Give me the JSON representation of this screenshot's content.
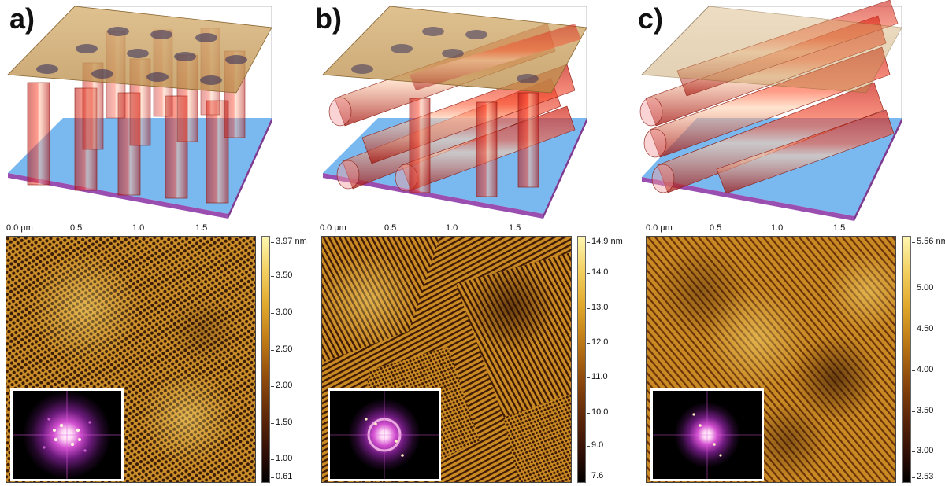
{
  "panels": [
    {
      "label": "a)",
      "axis_ticks": [
        "0.0 µm",
        "0.5",
        "1.0",
        "1.5"
      ],
      "colorbar": {
        "max_label": "3.97 nm",
        "ticks": [
          "3.50",
          "3.00",
          "2.50",
          "2.00",
          "1.50",
          "1.00"
        ],
        "min_label": "0.61"
      },
      "pattern": "hexagonal-dots"
    },
    {
      "label": "b)",
      "axis_ticks": [
        "0.0 µm",
        "0.5",
        "1.0",
        "1.5"
      ],
      "colorbar": {
        "max_label": "14.9 nm",
        "ticks": [
          "14.0",
          "13.0",
          "12.0",
          "11.0",
          "10.0",
          "9.0"
        ],
        "min_label": "7.6"
      },
      "pattern": "mixed-lines-dots"
    },
    {
      "label": "c)",
      "axis_ticks": [
        "0.0 µm",
        "0.5",
        "1.0",
        "1.5"
      ],
      "colorbar": {
        "max_label": "5.56 nm",
        "ticks": [
          "5.00",
          "4.50",
          "4.00",
          "3.50",
          "3.00"
        ],
        "min_label": "2.53"
      },
      "pattern": "parallel-lines"
    }
  ],
  "colors": {
    "cylinder": "#e0291d",
    "substrate_top": "#6fb3f2",
    "substrate_edge": "#9a4fb0",
    "film_top": "#c9a25a",
    "afm_mid": "#c98a24"
  }
}
